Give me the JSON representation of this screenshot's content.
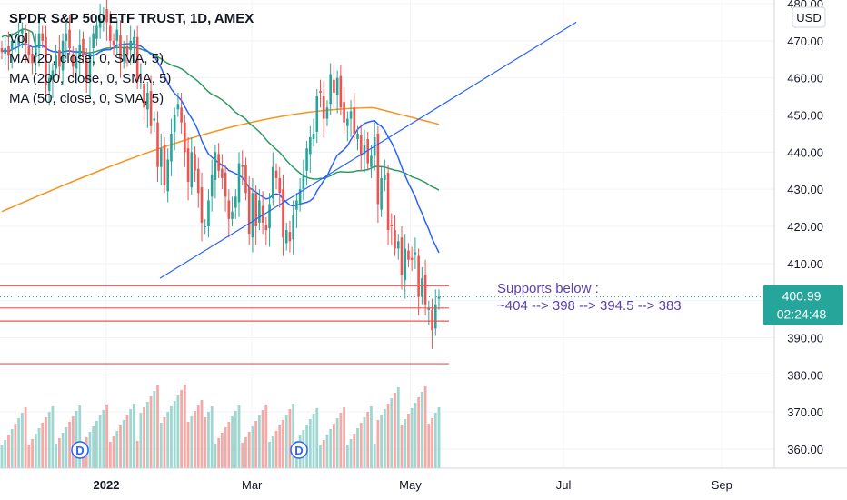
{
  "header": {
    "title": "SPDR S&P 500 ETF TRUST, 1D, AMEX",
    "indicators": [
      "Vol",
      "MA (20, close, 0, SMA, 5)",
      "MA (200, close, 0, SMA, 5)",
      "MA (50, close, 0, SMA, 5)"
    ]
  },
  "price_axis": {
    "currency": "USD"
  },
  "last_price": {
    "value": "400.99",
    "countdown": "02:24:48"
  },
  "note": {
    "line1": "Supports below :",
    "line2": "~404 --> 398 --> 394.5 --> 383"
  },
  "earnings_markers": [
    {
      "label": "D"
    },
    {
      "label": "D"
    }
  ],
  "colors": {
    "up": "#26a69a",
    "down": "#ef5350",
    "ma20": "#2962ff",
    "ma50": "#2e9a61",
    "ma200": "#f7941d",
    "support": "#ef5350",
    "trendline": "#2962ff",
    "note": "#5b3fae"
  },
  "chart_data": {
    "type": "candlestick",
    "ylim": [
      355,
      482
    ],
    "yticks": [
      "480.00",
      "470.00",
      "460.00",
      "450.00",
      "440.00",
      "430.00",
      "420.00",
      "410.00",
      "400.00",
      "390.00",
      "380.00",
      "370.00",
      "360.00"
    ],
    "ytick_values": [
      480,
      470,
      460,
      450,
      440,
      430,
      420,
      410,
      400,
      390,
      380,
      370,
      360
    ],
    "xticks": [
      {
        "label": "2022",
        "date": "2022-01-03"
      },
      {
        "label": "Mar",
        "date": "2022-03-01"
      },
      {
        "label": "May",
        "date": "2022-05-02"
      },
      {
        "label": "Jul",
        "date": "2022-07-01"
      },
      {
        "label": "Sep",
        "date": "2022-09-01"
      }
    ],
    "support_levels": [
      404,
      398,
      394.5,
      383
    ],
    "trendline": {
      "start": [
        "2022-01-24",
        406
      ],
      "end": [
        "2022-07-06",
        475
      ]
    },
    "series": [
      {
        "name": "Price",
        "values": [
          466.2,
          466.5,
          467.3,
          468.0,
          468.6,
          469.3,
          469.9,
          470.4,
          471.0,
          471.4,
          471.7,
          471.9,
          472.0,
          471.9,
          471.7,
          471.3,
          470.8,
          470.2,
          469.6,
          468.9,
          468.1,
          467.2,
          466.2,
          465.1,
          463.9,
          462.6,
          461.2,
          459.8,
          458.3,
          456.8,
          455.3,
          453.7,
          452.1,
          450.5,
          448.9,
          447.3,
          445.8,
          444.3,
          442.9,
          441.5,
          440.2,
          439.0,
          437.9,
          436.9,
          436.1,
          435.4,
          434.9,
          434.5,
          434.2,
          433.5,
          432.0,
          430.3,
          428.6,
          427.2,
          426.0,
          424.9,
          425.0,
          426.0,
          428.0,
          431.0,
          434.0,
          437.0,
          440.0,
          443.0,
          446.0,
          448.0,
          449.0,
          448.5,
          447.0,
          445.0,
          442.0,
          439.0,
          435.0,
          430.0,
          425.0,
          420.0,
          415.0,
          410.0,
          407.0,
          404.0,
          401.0,
          397.0,
          392.0,
          390.0,
          395.0,
          401.0
        ]
      },
      {
        "name": "Volume",
        "values": []
      }
    ]
  }
}
